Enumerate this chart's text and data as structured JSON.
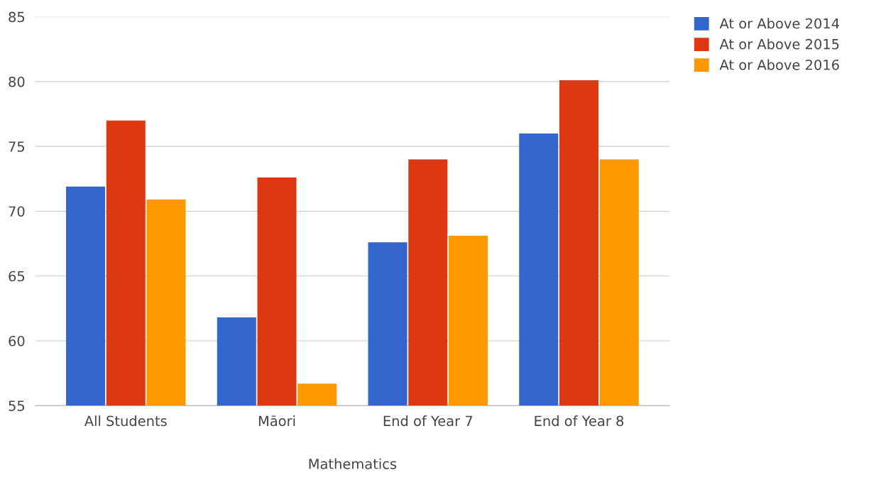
{
  "chart_data": {
    "type": "bar",
    "xlabel": "Mathematics",
    "categories": [
      "All Students",
      "Māori",
      "End of Year 7",
      "End of Year 8"
    ],
    "series": [
      {
        "name": "At or Above 2014",
        "color": "#3366cc",
        "values": [
          71.9,
          61.8,
          67.6,
          76.0
        ]
      },
      {
        "name": "At or Above 2015",
        "color": "#dc3912",
        "values": [
          77.0,
          72.6,
          74.0,
          80.1
        ]
      },
      {
        "name": "At or Above 2016",
        "color": "#ff9900",
        "values": [
          70.9,
          56.7,
          68.1,
          74.0
        ]
      }
    ],
    "ylim": [
      55,
      85
    ],
    "yticks": [
      55,
      60,
      65,
      70,
      75,
      80,
      85
    ],
    "grid": "y",
    "legend": "top right"
  }
}
